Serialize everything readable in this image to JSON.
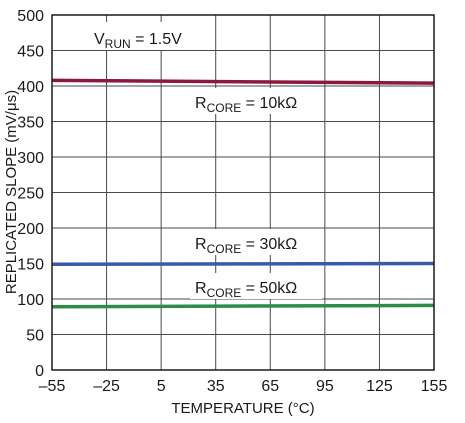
{
  "chart_data": {
    "type": "line",
    "xlabel": "TEMPERATURE (°C)",
    "ylabel": "REPLICATED SLOPE (mV/μs)",
    "xlim": [
      -55,
      155
    ],
    "ylim": [
      0,
      500
    ],
    "x_ticks": [
      -55,
      -25,
      5,
      35,
      65,
      95,
      125,
      155
    ],
    "x_tick_labels": [
      "–55",
      "–25",
      "5",
      "35",
      "65",
      "95",
      "125",
      "155"
    ],
    "y_ticks": [
      0,
      50,
      100,
      150,
      200,
      250,
      300,
      350,
      400,
      450,
      500
    ],
    "y_tick_labels": [
      "0",
      "50",
      "100",
      "150",
      "200",
      "250",
      "300",
      "350",
      "400",
      "450",
      "500"
    ],
    "grid": true,
    "x": [
      -55,
      155
    ],
    "series": [
      {
        "name": "RCORE = 10kΩ",
        "values": [
          408,
          404
        ],
        "color": "#8b1a3a"
      },
      {
        "name": "RCORE = 30kΩ",
        "values": [
          149,
          150
        ],
        "color": "#3a5aa8"
      },
      {
        "name": "RCORE = 50kΩ",
        "values": [
          89,
          91
        ],
        "color": "#2e8b4a"
      }
    ],
    "annotations": {
      "vrun": {
        "main": "V",
        "sub": "RUN",
        "rest": " = 1.5V"
      },
      "r10": {
        "main": "R",
        "sub": "CORE",
        "rest": " = 10kΩ"
      },
      "r30": {
        "main": "R",
        "sub": "CORE",
        "rest": " = 30kΩ"
      },
      "r50": {
        "main": "R",
        "sub": "CORE",
        "rest": " = 50kΩ"
      }
    }
  }
}
